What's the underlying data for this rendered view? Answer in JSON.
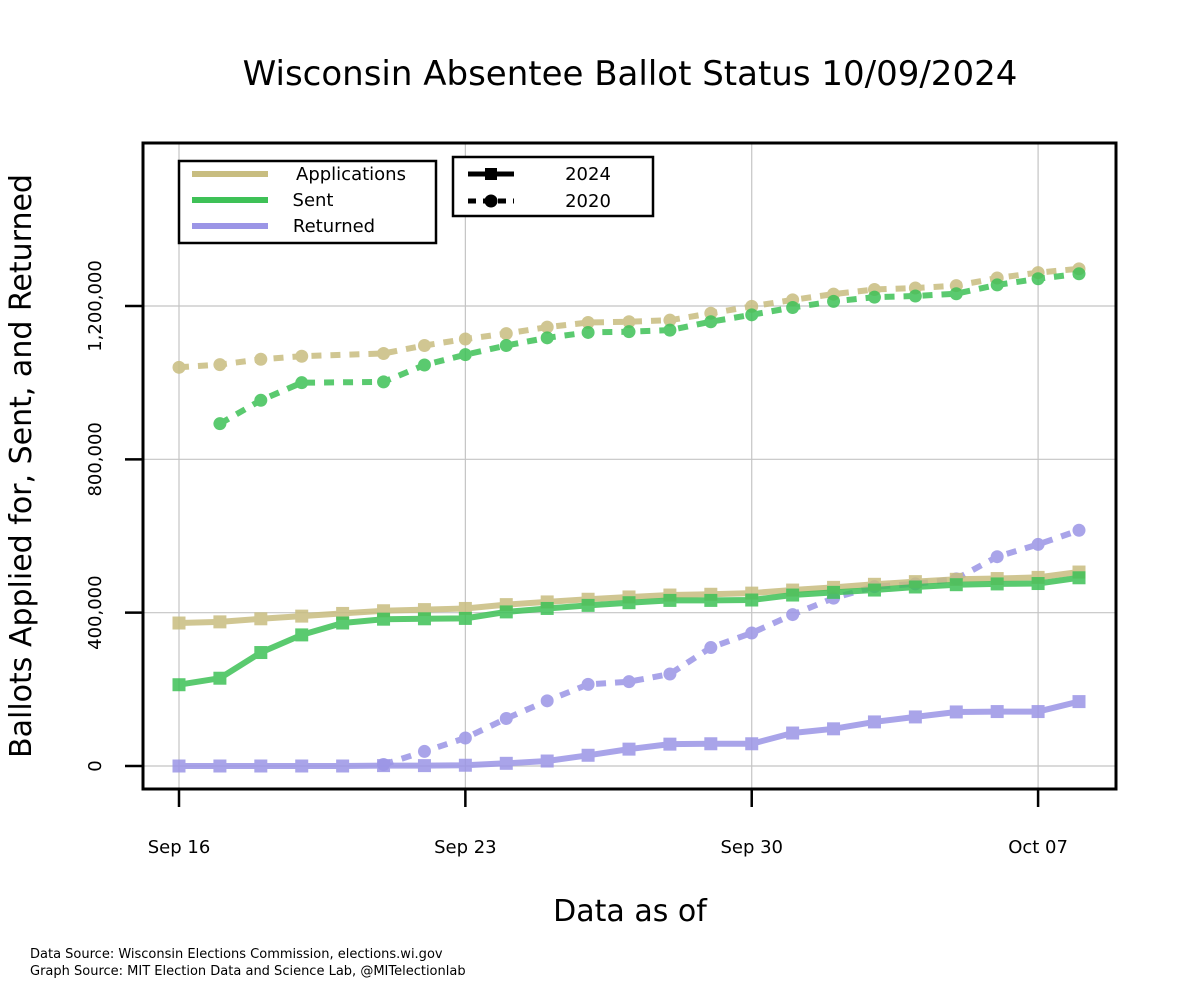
{
  "chart_data": {
    "type": "line",
    "title": "Wisconsin Absentee Ballot Status 10/09/2024",
    "xlabel": "Data as of",
    "ylabel": "Ballots Applied for, Sent, and Returned",
    "x_ticks": [
      {
        "date": "2024-09-16",
        "label": "Sep 16"
      },
      {
        "date": "2024-09-23",
        "label": "Sep 23"
      },
      {
        "date": "2024-09-30",
        "label": "Sep 30"
      },
      {
        "date": "2024-10-07",
        "label": "Oct 07"
      }
    ],
    "x_range": [
      "2024-09-16",
      "2024-10-08"
    ],
    "y_ticks": [
      {
        "value": 0,
        "label": "0"
      },
      {
        "value": 400000,
        "label": "400,000"
      },
      {
        "value": 800000,
        "label": "800,000"
      },
      {
        "value": 1200000,
        "label": "1,200,000"
      }
    ],
    "ylim": [
      0,
      1600000
    ],
    "grid": true,
    "colors": {
      "applications": "#c8bd80",
      "sent": "#3ec157",
      "returned": "#9b95e6"
    },
    "legend_categories": [
      {
        "label": "Applications",
        "color": "#c8bd80"
      },
      {
        "label": "Sent",
        "color": "#3ec157"
      },
      {
        "label": "Returned",
        "color": "#9b95e6"
      }
    ],
    "legend_years": [
      {
        "label": "2024",
        "style": "solid-square"
      },
      {
        "label": "2020",
        "style": "dashed-circle"
      }
    ],
    "series": [
      {
        "category": "applications",
        "year": "2024",
        "x": [
          "2024-09-16",
          "2024-09-17",
          "2024-09-18",
          "2024-09-19",
          "2024-09-20",
          "2024-09-21",
          "2024-09-22",
          "2024-09-23",
          "2024-09-24",
          "2024-09-25",
          "2024-09-26",
          "2024-09-27",
          "2024-09-28",
          "2024-09-29",
          "2024-09-30",
          "2024-10-01",
          "2024-10-02",
          "2024-10-03",
          "2024-10-04",
          "2024-10-05",
          "2024-10-06",
          "2024-10-07",
          "2024-10-08"
        ],
        "values": [
          373000,
          376000,
          384000,
          391000,
          398000,
          405000,
          408000,
          411000,
          421000,
          428000,
          435000,
          441000,
          446000,
          448000,
          451000,
          459000,
          466000,
          474000,
          481000,
          487000,
          489000,
          492000,
          506000
        ]
      },
      {
        "category": "sent",
        "year": "2024",
        "x": [
          "2024-09-16",
          "2024-09-17",
          "2024-09-18",
          "2024-09-19",
          "2024-09-20",
          "2024-09-21",
          "2024-09-22",
          "2024-09-23",
          "2024-09-24",
          "2024-09-25",
          "2024-09-26",
          "2024-09-27",
          "2024-09-28",
          "2024-09-29",
          "2024-09-30",
          "2024-10-01",
          "2024-10-02",
          "2024-10-03",
          "2024-10-04",
          "2024-10-05",
          "2024-10-06",
          "2024-10-07",
          "2024-10-08"
        ],
        "values": [
          212000,
          229000,
          296000,
          342000,
          373000,
          383000,
          384000,
          385000,
          402000,
          411000,
          419000,
          426000,
          432000,
          432000,
          433000,
          446000,
          453000,
          459000,
          467000,
          473000,
          475000,
          476000,
          491000
        ]
      },
      {
        "category": "returned",
        "year": "2024",
        "x": [
          "2024-09-16",
          "2024-09-17",
          "2024-09-18",
          "2024-09-19",
          "2024-09-20",
          "2024-09-21",
          "2024-09-22",
          "2024-09-23",
          "2024-09-24",
          "2024-09-25",
          "2024-09-26",
          "2024-09-27",
          "2024-09-28",
          "2024-09-29",
          "2024-09-30",
          "2024-10-01",
          "2024-10-02",
          "2024-10-03",
          "2024-10-04",
          "2024-10-05",
          "2024-10-06",
          "2024-10-07",
          "2024-10-08"
        ],
        "values": [
          0,
          0,
          0,
          0,
          0,
          1000,
          1000,
          2000,
          7000,
          13000,
          28000,
          44000,
          57000,
          58000,
          58000,
          86000,
          97000,
          115000,
          128000,
          141000,
          142000,
          142000,
          168000
        ]
      },
      {
        "category": "applications",
        "year": "2020",
        "x": [
          "2024-09-16",
          "2024-09-17",
          "2024-09-18",
          "2024-09-19",
          "2024-09-21",
          "2024-09-22",
          "2024-09-23",
          "2024-09-24",
          "2024-09-25",
          "2024-09-26",
          "2024-09-27",
          "2024-09-28",
          "2024-09-29",
          "2024-09-30",
          "2024-10-01",
          "2024-10-02",
          "2024-10-03",
          "2024-10-04",
          "2024-10-05",
          "2024-10-06",
          "2024-10-07",
          "2024-10-08"
        ],
        "values": [
          1040000,
          1047000,
          1061000,
          1069000,
          1076000,
          1097000,
          1114000,
          1128000,
          1145000,
          1157000,
          1159000,
          1163000,
          1181000,
          1199000,
          1216000,
          1231000,
          1243000,
          1247000,
          1253000,
          1273000,
          1287000,
          1297000
        ]
      },
      {
        "category": "sent",
        "year": "2020",
        "x": [
          "2024-09-17",
          "2024-09-18",
          "2024-09-19",
          "2024-09-21",
          "2024-09-22",
          "2024-09-23",
          "2024-09-24",
          "2024-09-25",
          "2024-09-26",
          "2024-09-27",
          "2024-09-28",
          "2024-09-29",
          "2024-09-30",
          "2024-10-01",
          "2024-10-02",
          "2024-10-03",
          "2024-10-04",
          "2024-10-05",
          "2024-10-06",
          "2024-10-07",
          "2024-10-08"
        ],
        "values": [
          893000,
          954000,
          1000000,
          1002000,
          1046000,
          1073000,
          1097000,
          1117000,
          1131000,
          1133000,
          1137000,
          1159000,
          1177000,
          1196000,
          1212000,
          1223000,
          1226000,
          1232000,
          1255000,
          1271000,
          1284000
        ]
      },
      {
        "category": "returned",
        "year": "2020",
        "x": [
          "2024-09-21",
          "2024-09-22",
          "2024-09-23",
          "2024-09-24",
          "2024-09-25",
          "2024-09-26",
          "2024-09-27",
          "2024-09-28",
          "2024-09-29",
          "2024-09-30",
          "2024-10-01",
          "2024-10-02",
          "2024-10-03",
          "2024-10-04",
          "2024-10-05",
          "2024-10-06",
          "2024-10-07",
          "2024-10-08"
        ],
        "values": [
          4000,
          38000,
          73000,
          124000,
          170000,
          213000,
          220000,
          240000,
          309000,
          347000,
          395000,
          438000,
          468000,
          475000,
          488000,
          546000,
          578000,
          615000
        ]
      }
    ]
  },
  "footer": {
    "data_source": "Data Source: Wisconsin Elections Commission, elections.wi.gov",
    "graph_source": "Graph Source: MIT Election Data and Science Lab, @MITelectionlab"
  }
}
